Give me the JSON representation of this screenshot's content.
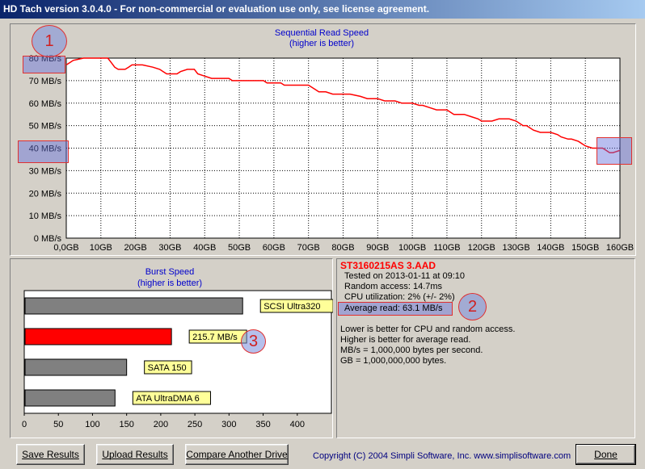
{
  "window": {
    "title": "HD Tach version 3.0.4.0  - For non-commercial or evaluation use only, see license agreement."
  },
  "chart_data": [
    {
      "type": "line",
      "title": "Sequential Read Speed",
      "subtitle": "(higher is better)",
      "ylabel_unit": "MB/s",
      "xlabel_unit": "GB",
      "xlim": [
        0,
        160
      ],
      "ylim": [
        0,
        80
      ],
      "x_tick_labels": [
        "0,0GB",
        "10GB",
        "20GB",
        "30GB",
        "40GB",
        "50GB",
        "60GB",
        "70GB",
        "80GB",
        "90GB",
        "100GB",
        "110GB",
        "120GB",
        "130GB",
        "140GB",
        "150GB",
        "160GB"
      ],
      "y_tick_labels": [
        "0 MB/s",
        "10 MB/s",
        "20 MB/s",
        "30 MB/s",
        "40 MB/s",
        "50 MB/s",
        "60 MB/s",
        "70 MB/s",
        "80 MB/s"
      ],
      "grid": true,
      "color": "#ff0000",
      "series": [
        {
          "x": [
            0,
            1,
            2,
            5,
            8,
            10,
            12,
            13,
            14,
            15,
            17,
            18,
            19,
            20,
            22,
            25,
            27,
            28,
            29,
            30,
            32,
            33,
            35,
            37,
            38,
            40,
            42,
            43,
            45,
            47,
            48,
            50,
            52,
            55,
            57,
            58,
            60,
            62,
            63,
            65,
            67,
            70,
            72,
            73,
            75,
            77,
            78,
            80,
            82,
            85,
            87,
            90,
            92,
            95,
            97,
            98,
            100,
            102,
            103,
            105,
            107,
            110,
            112,
            113,
            115,
            117,
            119,
            120,
            122,
            123,
            125,
            128,
            130,
            132,
            133,
            135,
            137,
            140,
            142,
            143,
            145,
            146,
            148,
            150,
            152,
            153,
            155,
            156,
            157,
            158,
            160
          ],
          "y": [
            77,
            78,
            79,
            80,
            80,
            80,
            80,
            78,
            76,
            75,
            75,
            76,
            77,
            77,
            77,
            76,
            75,
            74,
            73,
            73,
            73,
            74,
            75,
            75,
            73,
            72,
            71,
            71,
            71,
            71,
            70,
            70,
            70,
            70,
            70,
            69,
            69,
            69,
            68,
            68,
            68,
            68,
            66,
            65,
            65,
            64,
            64,
            64,
            64,
            63,
            62,
            62,
            61,
            61,
            60,
            60,
            60,
            59,
            59,
            58,
            57,
            57,
            55,
            55,
            55,
            54,
            53,
            52,
            52,
            52,
            53,
            53,
            52,
            50,
            50,
            48,
            47,
            47,
            46,
            45,
            44,
            44,
            43,
            41,
            40,
            40,
            40,
            39,
            38,
            38,
            39
          ]
        }
      ]
    },
    {
      "type": "bar",
      "orientation": "horizontal",
      "title": "Burst Speed",
      "subtitle": "(higher is better)",
      "xlim": [
        0,
        450
      ],
      "x_tick_labels": [
        "0",
        "50",
        "100",
        "150",
        "200",
        "250",
        "300",
        "350",
        "400"
      ],
      "categories": [
        "SCSI Ultra320",
        "215.7 MB/s",
        "SATA 150",
        "ATA UltraDMA 6"
      ],
      "values": [
        320,
        215.7,
        150,
        133
      ],
      "colors": [
        "#808080",
        "#ff0000",
        "#808080",
        "#808080"
      ]
    }
  ],
  "results": {
    "drive_name": "ST3160215AS 3.AAD",
    "tested_on": "Tested on 2013-01-11 at 09:10",
    "random_access": "Random access: 14.7ms",
    "cpu_utilization": "CPU utilization: 2% (+/- 2%)",
    "average_read": "Average read: 63.1 MB/s",
    "note_cpu": "Lower is better for CPU and random access.",
    "note_read": "Higher is better for average read.",
    "note_mbs": "MB/s = 1,000,000 bytes per second.",
    "note_gb": "GB = 1,000,000,000 bytes."
  },
  "markers": {
    "m1": "1",
    "m2": "2",
    "m3": "3"
  },
  "buttons": {
    "save": "Save Results",
    "upload": "Upload Results",
    "compare": "Compare Another Drive",
    "done": "Done"
  },
  "footer": {
    "copyright": "Copyright (C) 2004 Simpli Software, Inc. www.simplisoftware.com"
  }
}
